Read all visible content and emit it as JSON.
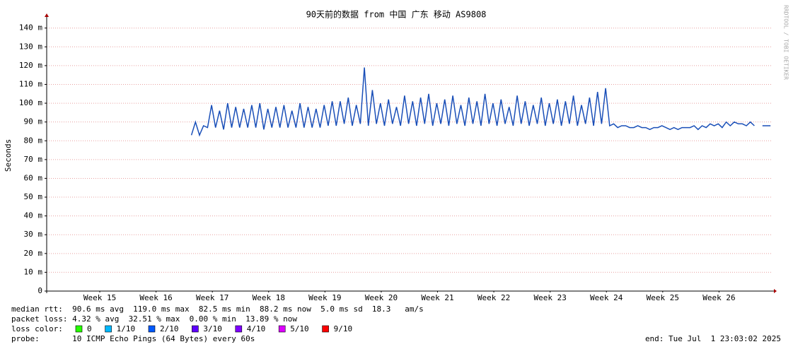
{
  "chart_data": {
    "type": "line",
    "title": "90天前的数据 from 中国 广东 移动 AS9808",
    "y_label": "Seconds",
    "watermark": "RRDTOOL / TOBI OETIKER",
    "color": "#1a4fb8",
    "grid": true,
    "xlim": [
      0,
      90.25
    ],
    "ylim": [
      0,
      0.1444
    ],
    "xticks": [
      {
        "value": 6.6,
        "label": "Week 15"
      },
      {
        "value": 13.6,
        "label": "Week 16"
      },
      {
        "value": 20.6,
        "label": "Week 17"
      },
      {
        "value": 27.6,
        "label": "Week 18"
      },
      {
        "value": 34.6,
        "label": "Week 19"
      },
      {
        "value": 41.6,
        "label": "Week 20"
      },
      {
        "value": 48.6,
        "label": "Week 21"
      },
      {
        "value": 55.6,
        "label": "Week 22"
      },
      {
        "value": 62.6,
        "label": "Week 23"
      },
      {
        "value": 69.6,
        "label": "Week 24"
      },
      {
        "value": 76.6,
        "label": "Week 25"
      },
      {
        "value": 83.6,
        "label": "Week 26"
      }
    ],
    "yticks": [
      0,
      {
        "value": 0.01,
        "label": "10 m"
      },
      {
        "value": 0.02,
        "label": "20 m"
      },
      {
        "value": 0.03,
        "label": "30 m"
      },
      {
        "value": 0.04,
        "label": "40 m"
      },
      {
        "value": 0.05,
        "label": "50 m"
      },
      {
        "value": 0.06,
        "label": "60 m"
      },
      {
        "value": 0.07,
        "label": "70 m"
      },
      {
        "value": 0.08,
        "label": "80 m"
      },
      {
        "value": 0.09,
        "label": "90 m"
      },
      {
        "value": 0.1,
        "label": "100 m"
      },
      {
        "value": 0.11,
        "label": "110 m"
      },
      {
        "value": 0.12,
        "label": "120 m"
      },
      {
        "value": 0.13,
        "label": "130 m"
      },
      {
        "value": 0.14,
        "label": "140 m"
      }
    ],
    "x": [
      18,
      18.5,
      19,
      19.5,
      20,
      20.5,
      21,
      21.5,
      22,
      22.5,
      23,
      23.5,
      24,
      24.5,
      25,
      25.5,
      26,
      26.5,
      27,
      27.5,
      28,
      28.5,
      29,
      29.5,
      30,
      30.5,
      31,
      31.5,
      32,
      32.5,
      33,
      33.5,
      34,
      34.5,
      35,
      35.5,
      36,
      36.5,
      37,
      37.5,
      38,
      38.5,
      39,
      39.5,
      40,
      40.5,
      41,
      41.5,
      42,
      42.5,
      43,
      43.5,
      44,
      44.5,
      45,
      45.5,
      46,
      46.5,
      47,
      47.5,
      48,
      48.5,
      49,
      49.5,
      50,
      50.5,
      51,
      51.5,
      52,
      52.5,
      53,
      53.5,
      54,
      54.5,
      55,
      55.5,
      56,
      56.5,
      57,
      57.5,
      58,
      58.5,
      59,
      59.5,
      60,
      60.5,
      61,
      61.5,
      62,
      62.5,
      63,
      63.5,
      64,
      64.5,
      65,
      65.5,
      66,
      66.5,
      67,
      67.5,
      68,
      68.5,
      69,
      69.5,
      70,
      70.5,
      71,
      71.5,
      72,
      72.5,
      73,
      73.5,
      74,
      74.5,
      75,
      75.5,
      76,
      76.5,
      77,
      77.5,
      78,
      78.5,
      79,
      79.5,
      80,
      80.5,
      81,
      81.5,
      82,
      82.5,
      83,
      83.5,
      84,
      84.5,
      85,
      85.5,
      86,
      86.5,
      87,
      87.5,
      88,
      88.5,
      89,
      89.5,
      90
    ],
    "values": [
      0.083,
      0.09,
      0.083,
      0.088,
      0.087,
      0.099,
      0.087,
      0.096,
      0.086,
      0.1,
      0.087,
      0.098,
      0.087,
      0.097,
      0.087,
      0.099,
      0.087,
      0.1,
      0.086,
      0.097,
      0.087,
      0.098,
      0.087,
      0.099,
      0.087,
      0.096,
      0.087,
      0.1,
      0.087,
      0.098,
      0.087,
      0.097,
      0.087,
      0.099,
      0.088,
      0.101,
      0.088,
      0.101,
      0.089,
      0.103,
      0.088,
      0.099,
      0.089,
      0.119,
      0.088,
      0.107,
      0.089,
      0.1,
      0.088,
      0.102,
      0.089,
      0.098,
      0.088,
      0.104,
      0.089,
      0.101,
      0.088,
      0.103,
      0.089,
      0.105,
      0.088,
      0.1,
      0.089,
      0.102,
      0.088,
      0.104,
      0.089,
      0.099,
      0.088,
      0.103,
      0.089,
      0.101,
      0.088,
      0.105,
      0.089,
      0.1,
      0.088,
      0.102,
      0.089,
      0.098,
      0.088,
      0.104,
      0.089,
      0.101,
      0.088,
      0.099,
      0.089,
      0.103,
      0.088,
      0.1,
      0.089,
      0.102,
      0.088,
      0.101,
      0.089,
      0.104,
      0.088,
      0.099,
      0.089,
      0.103,
      0.088,
      0.106,
      0.089,
      0.108,
      0.088,
      0.089,
      0.087,
      0.088,
      0.088,
      0.087,
      0.087,
      0.088,
      0.087,
      0.087,
      0.086,
      0.087,
      0.087,
      0.088,
      0.087,
      0.086,
      0.087,
      0.086,
      0.087,
      0.087,
      0.087,
      0.088,
      0.086,
      0.088,
      0.087,
      0.089,
      0.088,
      0.089,
      0.087,
      0.09,
      0.088,
      0.09,
      0.089,
      0.089,
      0.088,
      0.09,
      0.088,
      null,
      0.088,
      0.088,
      0.088
    ],
    "loss_label": "loss color:",
    "loss_colors": [
      {
        "name": "0",
        "color": "#26ff00"
      },
      {
        "name": "1/10",
        "color": "#00b8ff"
      },
      {
        "name": "2/10",
        "color": "#0059ff"
      },
      {
        "name": "3/10",
        "color": "#5e00ff"
      },
      {
        "name": "4/10",
        "color": "#7e00ff"
      },
      {
        "name": "5/10",
        "color": "#dd00ff"
      },
      {
        "name": "9/10",
        "color": "#ff0000"
      }
    ],
    "stats": {
      "median_rtt": "median rtt:  90.6 ms avg  119.0 ms max  82.5 ms min  88.2 ms now  5.0 ms sd  18.3   am/s",
      "packet_loss": "packet loss: 4.32 % avg  32.51 % max  0.00 % min  13.89 % now",
      "probe": "probe:       10 ICMP Echo Pings (64 Bytes) every 60s",
      "end": "end: Tue Jul  1 23:03:02 2025"
    }
  }
}
